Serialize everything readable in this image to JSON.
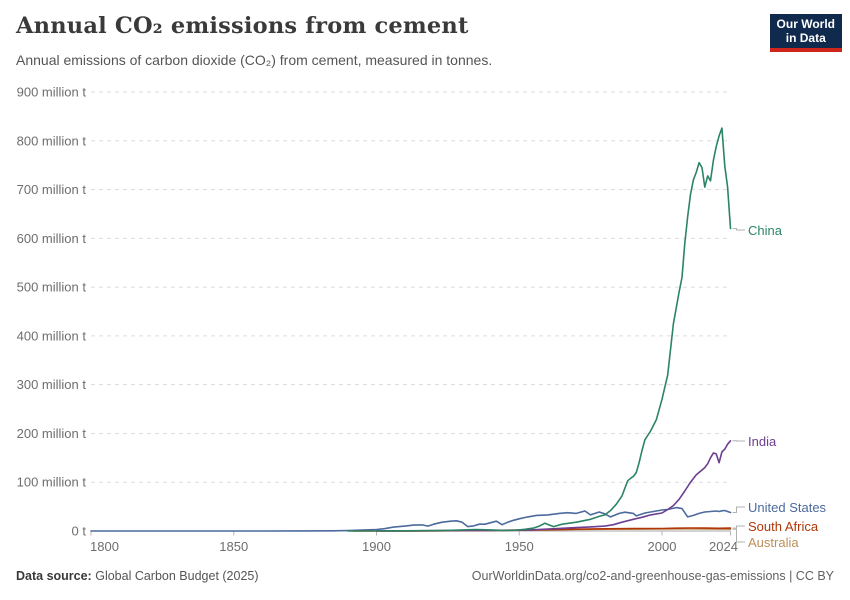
{
  "header": {
    "title": "Annual CO₂ emissions from cement",
    "subtitle": "Annual emissions of carbon dioxide (CO₂) from cement, measured in tonnes."
  },
  "logo": {
    "line1": "Our World",
    "line2": "in Data",
    "bg_color": "#102a4e",
    "bar_color": "#cf261c"
  },
  "footer": {
    "source_label": "Data source:",
    "source_text": "Global Carbon Budget (2025)",
    "credit_text": "OurWorldinData.org/co2-and-greenhouse-gas-emissions | CC BY"
  },
  "chart_data": {
    "type": "line",
    "title": "Annual CO₂ emissions from cement",
    "unit": "million tonnes of CO₂ per year",
    "grid": "horizontal-dashed",
    "legend_position": "end-of-line-labels-right",
    "x_axis": {
      "min": 1800,
      "max": 2024,
      "tick_values": [
        1800,
        1850,
        1900,
        1950,
        2000,
        2024
      ],
      "tick_labels": [
        "1800",
        "1850",
        "1900",
        "1950",
        "2000",
        "2024"
      ]
    },
    "y_axis": {
      "min": 0,
      "max": 900,
      "tick_values": [
        0,
        100,
        200,
        300,
        400,
        500,
        600,
        700,
        800,
        900
      ],
      "tick_labels": [
        "0 t",
        "100 million t",
        "200 million t",
        "300 million t",
        "400 million t",
        "500 million t",
        "600 million t",
        "700 million t",
        "800 million t",
        "900 million t"
      ]
    },
    "series": [
      {
        "name": "United States",
        "color": "#4C6A9C",
        "points": [
          [
            1800,
            0
          ],
          [
            1840,
            0.05
          ],
          [
            1860,
            0.1
          ],
          [
            1875,
            0.2
          ],
          [
            1885,
            0.5
          ],
          [
            1890,
            1
          ],
          [
            1895,
            1.8
          ],
          [
            1900,
            3
          ],
          [
            1903,
            5
          ],
          [
            1906,
            8
          ],
          [
            1910,
            10
          ],
          [
            1913,
            12
          ],
          [
            1916,
            12.5
          ],
          [
            1918,
            10
          ],
          [
            1920,
            14
          ],
          [
            1923,
            18
          ],
          [
            1926,
            20
          ],
          [
            1928,
            21
          ],
          [
            1930,
            18
          ],
          [
            1932,
            9
          ],
          [
            1934,
            10.5
          ],
          [
            1936,
            14
          ],
          [
            1938,
            14
          ],
          [
            1940,
            17
          ],
          [
            1942,
            20
          ],
          [
            1944,
            13
          ],
          [
            1946,
            18
          ],
          [
            1948,
            22
          ],
          [
            1950,
            25
          ],
          [
            1953,
            29
          ],
          [
            1956,
            32
          ],
          [
            1960,
            33
          ],
          [
            1964,
            36
          ],
          [
            1967,
            37.5
          ],
          [
            1970,
            36
          ],
          [
            1973,
            41
          ],
          [
            1975,
            33
          ],
          [
            1978,
            39
          ],
          [
            1980,
            35
          ],
          [
            1982,
            29
          ],
          [
            1985,
            36
          ],
          [
            1987,
            38.5
          ],
          [
            1990,
            36
          ],
          [
            1991,
            31
          ],
          [
            1994,
            37
          ],
          [
            1997,
            40
          ],
          [
            2000,
            43
          ],
          [
            2002,
            44
          ],
          [
            2005,
            48
          ],
          [
            2007,
            46
          ],
          [
            2009,
            29
          ],
          [
            2011,
            32
          ],
          [
            2013,
            36
          ],
          [
            2015,
            39
          ],
          [
            2017,
            40
          ],
          [
            2019,
            41
          ],
          [
            2020,
            40
          ],
          [
            2021,
            41.5
          ],
          [
            2022,
            42
          ],
          [
            2023,
            40
          ],
          [
            2024,
            38
          ]
        ]
      },
      {
        "name": "Australia",
        "color": "#BC8E5A",
        "points": [
          [
            1900,
            0.1
          ],
          [
            1920,
            0.3
          ],
          [
            1930,
            0.6
          ],
          [
            1940,
            1
          ],
          [
            1950,
            1.4
          ],
          [
            1960,
            2.2
          ],
          [
            1970,
            3.2
          ],
          [
            1980,
            3.6
          ],
          [
            1990,
            3.6
          ],
          [
            2000,
            4.2
          ],
          [
            2010,
            4.6
          ],
          [
            2015,
            4.2
          ],
          [
            2020,
            3.9
          ],
          [
            2024,
            3.6
          ]
        ]
      },
      {
        "name": "South Africa",
        "color": "#B13507",
        "points": [
          [
            1892,
            0.1
          ],
          [
            1910,
            0.3
          ],
          [
            1920,
            0.5
          ],
          [
            1930,
            0.9
          ],
          [
            1940,
            1.3
          ],
          [
            1950,
            1.9
          ],
          [
            1960,
            2.6
          ],
          [
            1970,
            3.6
          ],
          [
            1980,
            4.6
          ],
          [
            1990,
            5.2
          ],
          [
            2000,
            5.2
          ],
          [
            2005,
            5.8
          ],
          [
            2010,
            6.2
          ],
          [
            2015,
            6
          ],
          [
            2020,
            5.5
          ],
          [
            2024,
            6
          ]
        ]
      },
      {
        "name": "India",
        "color": "#6D3E91",
        "points": [
          [
            1900,
            0.2
          ],
          [
            1914,
            0.4
          ],
          [
            1925,
            0.8
          ],
          [
            1935,
            1.2
          ],
          [
            1945,
            1.5
          ],
          [
            1950,
            1.7
          ],
          [
            1955,
            2.5
          ],
          [
            1960,
            4
          ],
          [
            1965,
            5.5
          ],
          [
            1970,
            7
          ],
          [
            1975,
            8.5
          ],
          [
            1980,
            10
          ],
          [
            1983,
            13
          ],
          [
            1986,
            18
          ],
          [
            1990,
            24
          ],
          [
            1993,
            28
          ],
          [
            1996,
            33
          ],
          [
            2000,
            37
          ],
          [
            2002,
            44
          ],
          [
            2004,
            52
          ],
          [
            2006,
            65
          ],
          [
            2008,
            82
          ],
          [
            2010,
            100
          ],
          [
            2012,
            115
          ],
          [
            2014,
            125
          ],
          [
            2015,
            130
          ],
          [
            2016,
            138
          ],
          [
            2017,
            150
          ],
          [
            2018,
            160
          ],
          [
            2019,
            158
          ],
          [
            2020,
            140
          ],
          [
            2021,
            162
          ],
          [
            2022,
            168
          ],
          [
            2023,
            178
          ],
          [
            2024,
            185
          ]
        ]
      },
      {
        "name": "China",
        "color": "#2C8465",
        "points": [
          [
            1890,
            0.05
          ],
          [
            1910,
            0.4
          ],
          [
            1920,
            0.8
          ],
          [
            1925,
            1.2
          ],
          [
            1930,
            2.2
          ],
          [
            1935,
            3
          ],
          [
            1940,
            2.2
          ],
          [
            1945,
            1.2
          ],
          [
            1949,
            1.6
          ],
          [
            1952,
            3.5
          ],
          [
            1955,
            6
          ],
          [
            1957,
            10
          ],
          [
            1959,
            16
          ],
          [
            1962,
            9
          ],
          [
            1965,
            14
          ],
          [
            1970,
            18
          ],
          [
            1975,
            24
          ],
          [
            1978,
            30
          ],
          [
            1980,
            33
          ],
          [
            1982,
            42
          ],
          [
            1984,
            55
          ],
          [
            1986,
            72
          ],
          [
            1987,
            88
          ],
          [
            1988,
            103
          ],
          [
            1989,
            108
          ],
          [
            1990,
            112
          ],
          [
            1991,
            120
          ],
          [
            1992,
            140
          ],
          [
            1993,
            165
          ],
          [
            1994,
            187
          ],
          [
            1996,
            205
          ],
          [
            1998,
            228
          ],
          [
            2000,
            270
          ],
          [
            2002,
            320
          ],
          [
            2004,
            425
          ],
          [
            2006,
            490
          ],
          [
            2007,
            520
          ],
          [
            2008,
            590
          ],
          [
            2009,
            645
          ],
          [
            2010,
            690
          ],
          [
            2011,
            720
          ],
          [
            2012,
            735
          ],
          [
            2013,
            755
          ],
          [
            2014,
            745
          ],
          [
            2015,
            705
          ],
          [
            2016,
            728
          ],
          [
            2017,
            718
          ],
          [
            2018,
            760
          ],
          [
            2019,
            788
          ],
          [
            2020,
            810
          ],
          [
            2021,
            826
          ],
          [
            2022,
            748
          ],
          [
            2023,
            705
          ],
          [
            2024,
            620
          ]
        ]
      }
    ]
  }
}
